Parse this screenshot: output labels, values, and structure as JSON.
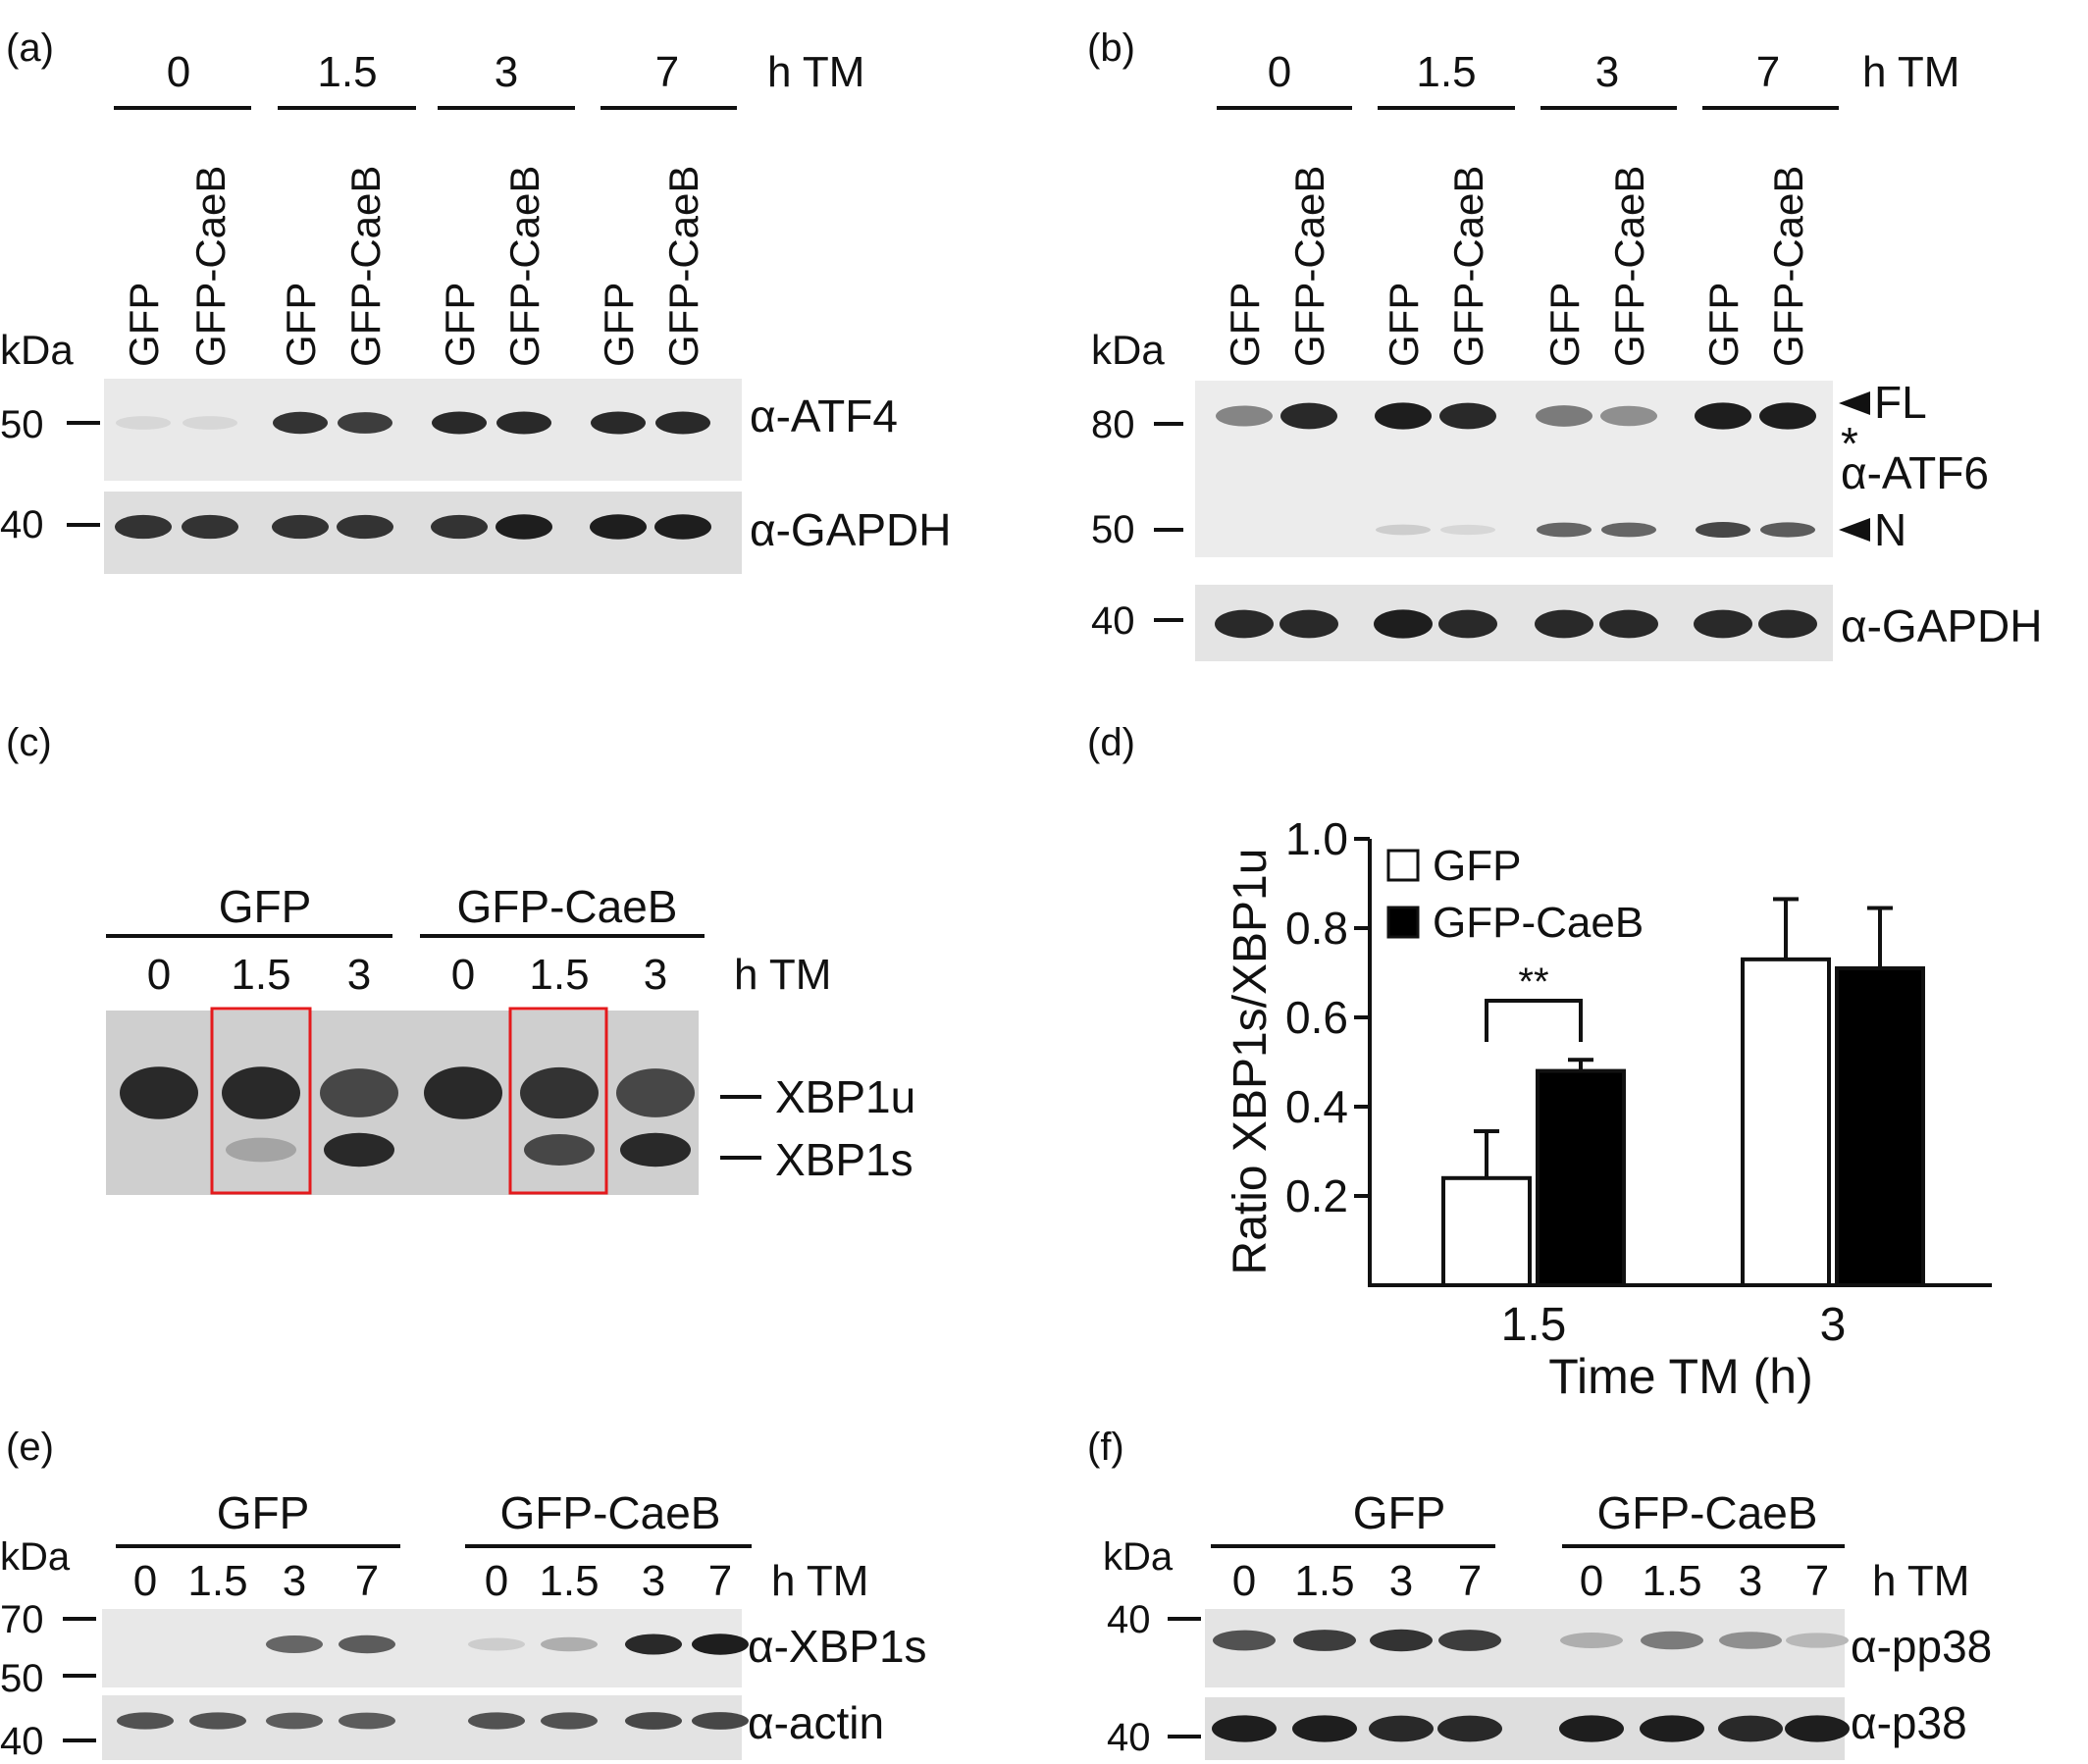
{
  "panels": {
    "a": {
      "label": "(a)",
      "time_unit": "h TM",
      "times": [
        "0",
        "1.5",
        "3",
        "7"
      ],
      "lanes": [
        "GFP",
        "GFP-CaeB",
        "GFP",
        "GFP-CaeB",
        "GFP",
        "GFP-CaeB",
        "GFP",
        "GFP-CaeB"
      ],
      "kda": "kDa",
      "markers": [
        "50",
        "40"
      ],
      "antibodies": [
        "α-ATF4",
        "α-GAPDH"
      ],
      "atf4_intensity": [
        0.05,
        0.05,
        0.85,
        0.8,
        0.9,
        0.9,
        0.9,
        0.9
      ],
      "gapdh_intensity": [
        0.85,
        0.85,
        0.85,
        0.85,
        0.85,
        0.95,
        0.95,
        0.95
      ]
    },
    "b": {
      "label": "(b)",
      "time_unit": "h TM",
      "times": [
        "0",
        "1.5",
        "3",
        "7"
      ],
      "lanes": [
        "GFP",
        "GFP-CaeB",
        "GFP",
        "GFP-CaeB",
        "GFP",
        "GFP-CaeB",
        "GFP",
        "GFP-CaeB"
      ],
      "kda": "kDa",
      "markers": [
        "80",
        "50",
        "40"
      ],
      "antibodies": [
        "α-ATF6",
        "α-GAPDH"
      ],
      "annotations": [
        "FL",
        "*",
        "N"
      ],
      "fl_intensity": [
        0.45,
        0.9,
        0.95,
        0.9,
        0.5,
        0.4,
        0.95,
        0.95
      ],
      "n_intensity": [
        0.0,
        0.0,
        0.1,
        0.05,
        0.6,
        0.6,
        0.75,
        0.65
      ],
      "gapdh_intensity": [
        0.9,
        0.9,
        0.95,
        0.9,
        0.9,
        0.9,
        0.9,
        0.9
      ]
    },
    "c": {
      "label": "(c)",
      "groups": [
        "GFP",
        "GFP-CaeB"
      ],
      "times": [
        "0",
        "1.5",
        "3",
        "0",
        "1.5",
        "3"
      ],
      "time_unit": "h TM",
      "bands": [
        "XBP1u",
        "XBP1s"
      ],
      "xbp1u_intensity": [
        0.9,
        0.9,
        0.75,
        0.9,
        0.85,
        0.75
      ],
      "xbp1s_intensity": [
        0.0,
        0.3,
        0.9,
        0.0,
        0.75,
        0.9
      ],
      "highlight_color": "#e41a1c"
    },
    "d": {
      "label": "(d)"
    },
    "e": {
      "label": "(e)",
      "groups": [
        "GFP",
        "GFP-CaeB"
      ],
      "times": [
        "0",
        "1.5",
        "3",
        "7",
        "0",
        "1.5",
        "3",
        "7"
      ],
      "time_unit": "h TM",
      "kda": "kDa",
      "markers": [
        "70",
        "50",
        "40"
      ],
      "antibodies": [
        "α-XBP1s",
        "α-actin"
      ],
      "xbp1s_intensity": [
        0.0,
        0.0,
        0.6,
        0.65,
        0.1,
        0.25,
        0.9,
        0.95
      ],
      "actin_intensity": [
        0.7,
        0.7,
        0.65,
        0.65,
        0.7,
        0.7,
        0.75,
        0.75
      ]
    },
    "f": {
      "label": "(f)",
      "groups": [
        "GFP",
        "GFP-CaeB"
      ],
      "times": [
        "0",
        "1.5",
        "3",
        "7",
        "0",
        "1.5",
        "3",
        "7"
      ],
      "time_unit": "h TM",
      "kda": "kDa",
      "markers": [
        "40",
        "40"
      ],
      "antibodies": [
        "α-pp38",
        "α-p38"
      ],
      "pp38_intensity": [
        0.7,
        0.8,
        0.85,
        0.8,
        0.25,
        0.5,
        0.4,
        0.2
      ],
      "p38_intensity": [
        0.95,
        0.95,
        0.9,
        0.9,
        0.95,
        0.95,
        0.9,
        0.95
      ]
    }
  },
  "chart_data": {
    "type": "bar",
    "categories": [
      "1.5",
      "3"
    ],
    "series": [
      {
        "name": "GFP",
        "values": [
          0.24,
          0.73
        ],
        "errors": [
          0.105,
          0.135
        ],
        "color": "#ffffff"
      },
      {
        "name": "GFP-CaeB",
        "values": [
          0.48,
          0.71
        ],
        "errors": [
          0.025,
          0.135
        ],
        "color": "#000000"
      }
    ],
    "xlabel": "Time TM (h)",
    "ylabel": "Ratio XBP1s/XBP1u",
    "ylim": [
      0,
      1.0
    ],
    "yticks": [
      "0.2",
      "0.4",
      "0.6",
      "0.8",
      "1.0"
    ],
    "significance": {
      "category": "1.5",
      "label": "**"
    },
    "legend_position": "top-left",
    "grid": false
  }
}
